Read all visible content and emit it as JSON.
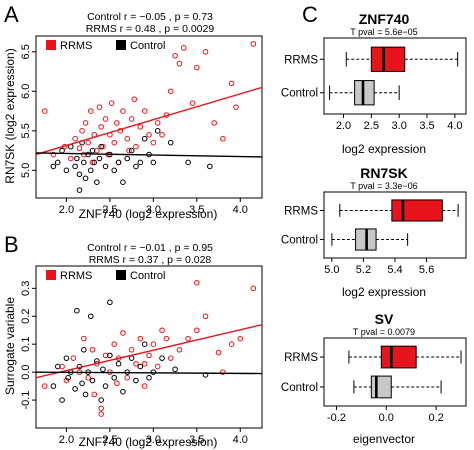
{
  "colors": {
    "rrms": "#e8141c",
    "control": "#000000",
    "box_control": "#c8c8c8",
    "axis": "#000000"
  },
  "chart_data": [
    {
      "panel": "A",
      "type": "scatter",
      "xlabel": "ZNF740 (log2 expression)",
      "ylabel": "RN7SK (log2 expression)",
      "xlim": [
        1.65,
        4.25
      ],
      "ylim": [
        4.65,
        6.7
      ],
      "xticks": [
        2.0,
        2.5,
        3.0,
        3.5,
        4.0
      ],
      "yticks": [
        5.0,
        5.5,
        6.0,
        6.5
      ],
      "stats": [
        "Control r = −0.05 , p = 0.73",
        "RRMS r = 0.48 , p = 0.0029"
      ],
      "legend": [
        "RRMS",
        "Control"
      ],
      "legend_position": "top-left",
      "grid": false,
      "series": [
        {
          "name": "RRMS",
          "color": "#e8141c",
          "points": [
            [
              1.75,
              5.75
            ],
            [
              1.85,
              5.2
            ],
            [
              1.98,
              5.3
            ],
            [
              2.05,
              5.15
            ],
            [
              2.1,
              5.4
            ],
            [
              2.15,
              5.28
            ],
            [
              2.18,
              5.5
            ],
            [
              2.2,
              5.2
            ],
            [
              2.22,
              5.6
            ],
            [
              2.25,
              5.35
            ],
            [
              2.28,
              5.75
            ],
            [
              2.3,
              5.1
            ],
            [
              2.32,
              5.45
            ],
            [
              2.35,
              5.25
            ],
            [
              2.38,
              5.8
            ],
            [
              2.4,
              5.55
            ],
            [
              2.42,
              5.3
            ],
            [
              2.45,
              5.65
            ],
            [
              2.48,
              5.2
            ],
            [
              2.5,
              5.45
            ],
            [
              2.52,
              5.85
            ],
            [
              2.55,
              5.35
            ],
            [
              2.58,
              5.6
            ],
            [
              2.6,
              5.1
            ],
            [
              2.62,
              5.5
            ],
            [
              2.65,
              5.75
            ],
            [
              2.7,
              5.4
            ],
            [
              2.72,
              5.25
            ],
            [
              2.75,
              5.65
            ],
            [
              2.78,
              5.9
            ],
            [
              2.8,
              5.3
            ],
            [
              2.85,
              5.55
            ],
            [
              2.9,
              5.75
            ],
            [
              2.95,
              5.45
            ],
            [
              3.0,
              5.35
            ],
            [
              3.05,
              5.6
            ],
            [
              3.1,
              5.45
            ],
            [
              3.15,
              5.7
            ],
            [
              3.2,
              6.0
            ],
            [
              3.25,
              6.45
            ],
            [
              3.3,
              6.35
            ],
            [
              3.35,
              6.55
            ],
            [
              3.45,
              5.85
            ],
            [
              3.5,
              6.3
            ],
            [
              3.6,
              6.5
            ],
            [
              3.7,
              5.6
            ],
            [
              3.8,
              5.4
            ],
            [
              3.9,
              6.1
            ],
            [
              3.95,
              5.8
            ],
            [
              4.15,
              6.6
            ]
          ]
        },
        {
          "name": "Control",
          "color": "#000000",
          "points": [
            [
              1.85,
              5.05
            ],
            [
              1.9,
              5.1
            ],
            [
              1.95,
              5.25
            ],
            [
              2.0,
              5.0
            ],
            [
              2.05,
              5.3
            ],
            [
              2.1,
              5.05
            ],
            [
              2.12,
              5.15
            ],
            [
              2.15,
              4.95
            ],
            [
              2.18,
              5.35
            ],
            [
              2.2,
              5.1
            ],
            [
              2.22,
              4.9
            ],
            [
              2.25,
              5.2
            ],
            [
              2.28,
              5.0
            ],
            [
              2.3,
              5.25
            ],
            [
              2.32,
              5.1
            ],
            [
              2.35,
              4.85
            ],
            [
              2.38,
              5.15
            ],
            [
              2.4,
              5.3
            ],
            [
              2.45,
              5.05
            ],
            [
              2.5,
              5.2
            ],
            [
              2.55,
              5.0
            ],
            [
              2.6,
              5.1
            ],
            [
              2.65,
              4.85
            ],
            [
              2.7,
              5.15
            ],
            [
              2.75,
              5.25
            ],
            [
              2.8,
              5.05
            ],
            [
              2.85,
              5.1
            ],
            [
              2.9,
              5.4
            ],
            [
              2.95,
              5.2
            ],
            [
              3.0,
              5.1
            ],
            [
              3.05,
              5.5
            ],
            [
              3.2,
              5.35
            ],
            [
              3.4,
              5.1
            ],
            [
              3.65,
              5.05
            ],
            [
              2.15,
              4.75
            ]
          ]
        }
      ],
      "fits": [
        {
          "name": "RRMS",
          "color": "#e8141c",
          "x": [
            1.65,
            4.25
          ],
          "y": [
            5.2,
            6.05
          ]
        },
        {
          "name": "Control",
          "color": "#000000",
          "x": [
            1.65,
            4.25
          ],
          "y": [
            5.22,
            5.17
          ]
        }
      ]
    },
    {
      "panel": "B",
      "type": "scatter",
      "xlabel": "ZNF740 (log2 expression)",
      "ylabel": "Surrogate variable",
      "xlim": [
        1.65,
        4.25
      ],
      "ylim": [
        -0.2,
        0.38
      ],
      "xticks": [
        2.0,
        2.5,
        3.0,
        3.5,
        4.0
      ],
      "yticks": [
        -0.1,
        0.0,
        0.1,
        0.2,
        0.3
      ],
      "stats": [
        "Control r = −0.01 , p = 0.95",
        "RRMS r = 0.37 , p = 0.028"
      ],
      "legend": [
        "RRMS",
        "Control"
      ],
      "legend_position": "top-left",
      "grid": false,
      "series": [
        {
          "name": "RRMS",
          "color": "#e8141c",
          "points": [
            [
              1.75,
              -0.05
            ],
            [
              1.95,
              0.02
            ],
            [
              2.0,
              -0.03
            ],
            [
              2.08,
              0.05
            ],
            [
              2.15,
              0.0
            ],
            [
              2.2,
              0.12
            ],
            [
              2.25,
              -0.02
            ],
            [
              2.3,
              0.08
            ],
            [
              2.32,
              -0.08
            ],
            [
              2.35,
              0.03
            ],
            [
              2.4,
              -0.13
            ],
            [
              2.45,
              0.06
            ],
            [
              2.5,
              0.0
            ],
            [
              2.55,
              0.1
            ],
            [
              2.58,
              -0.04
            ],
            [
              2.6,
              0.05
            ],
            [
              2.65,
              0.14
            ],
            [
              2.7,
              -0.02
            ],
            [
              2.75,
              0.08
            ],
            [
              2.8,
              0.03
            ],
            [
              2.85,
              0.12
            ],
            [
              2.9,
              -0.05
            ],
            [
              2.95,
              0.06
            ],
            [
              3.0,
              0.1
            ],
            [
              3.05,
              0.02
            ],
            [
              3.1,
              0.15
            ],
            [
              3.15,
              0.12
            ],
            [
              3.2,
              0.05
            ],
            [
              3.3,
              0.08
            ],
            [
              3.4,
              0.12
            ],
            [
              3.5,
              0.15
            ],
            [
              3.6,
              0.2
            ],
            [
              3.75,
              0.07
            ],
            [
              3.8,
              0.0
            ],
            [
              3.9,
              0.1
            ],
            [
              4.0,
              0.12
            ],
            [
              4.15,
              0.3
            ],
            [
              2.4,
              -0.15
            ],
            [
              3.5,
              0.32
            ],
            [
              2.9,
              0.03
            ]
          ]
        },
        {
          "name": "Control",
          "color": "#000000",
          "points": [
            [
              1.85,
              -0.05
            ],
            [
              1.9,
              0.02
            ],
            [
              1.95,
              -0.1
            ],
            [
              2.0,
              0.05
            ],
            [
              2.02,
              -0.02
            ],
            [
              2.05,
              0.0
            ],
            [
              2.1,
              -0.06
            ],
            [
              2.12,
              0.22
            ],
            [
              2.15,
              0.02
            ],
            [
              2.18,
              -0.04
            ],
            [
              2.2,
              0.08
            ],
            [
              2.22,
              -0.08
            ],
            [
              2.25,
              0.0
            ],
            [
              2.28,
              0.2
            ],
            [
              2.3,
              -0.03
            ],
            [
              2.35,
              0.04
            ],
            [
              2.4,
              -0.1
            ],
            [
              2.42,
              0.01
            ],
            [
              2.45,
              -0.05
            ],
            [
              2.5,
              0.06
            ],
            [
              2.55,
              -0.02
            ],
            [
              2.6,
              0.03
            ],
            [
              2.65,
              -0.07
            ],
            [
              2.7,
              0.0
            ],
            [
              2.75,
              0.05
            ],
            [
              2.8,
              -0.03
            ],
            [
              2.85,
              0.02
            ],
            [
              2.9,
              0.1
            ],
            [
              2.95,
              -0.02
            ],
            [
              3.0,
              0.0
            ],
            [
              3.1,
              0.05
            ],
            [
              3.25,
              0.01
            ],
            [
              3.6,
              -0.01
            ],
            [
              2.5,
              0.25
            ]
          ]
        }
      ],
      "fits": [
        {
          "name": "RRMS",
          "color": "#e8141c",
          "x": [
            1.65,
            4.25
          ],
          "y": [
            -0.02,
            0.17
          ]
        },
        {
          "name": "Control",
          "color": "#000000",
          "x": [
            1.65,
            4.25
          ],
          "y": [
            0.0,
            -0.005
          ]
        }
      ]
    },
    {
      "panel": "C",
      "type": "box",
      "title": "ZNF740",
      "subtitle": "T pval = 5.6e−05",
      "xlabel": "log2 expression",
      "xlim": [
        1.65,
        4.2
      ],
      "xticks": [
        2.0,
        2.5,
        3.0,
        3.5,
        4.0
      ],
      "groups": [
        {
          "name": "RRMS",
          "color": "#e8141c",
          "whisker_low": 2.05,
          "q1": 2.5,
          "median": 2.72,
          "q3": 3.1,
          "whisker_high": 4.05
        },
        {
          "name": "Control",
          "color": "#c8c8c8",
          "whisker_low": 1.75,
          "q1": 2.2,
          "median": 2.35,
          "q3": 2.55,
          "whisker_high": 3.0
        }
      ]
    },
    {
      "panel": "C",
      "type": "box",
      "title": "RN7SK",
      "subtitle": "T pval = 3.3e−06",
      "xlabel": "log2 expression",
      "xlim": [
        4.95,
        5.85
      ],
      "xticks": [
        5.0,
        5.2,
        5.4,
        5.6
      ],
      "groups": [
        {
          "name": "RRMS",
          "color": "#e8141c",
          "whisker_low": 5.05,
          "q1": 5.38,
          "median": 5.45,
          "q3": 5.7,
          "whisker_high": 5.8
        },
        {
          "name": "Control",
          "color": "#c8c8c8",
          "whisker_low": 5.0,
          "q1": 5.15,
          "median": 5.22,
          "q3": 5.28,
          "whisker_high": 5.48
        }
      ]
    },
    {
      "panel": "C",
      "type": "box",
      "title": "SV",
      "subtitle": "T pval = 0.0079",
      "xlabel": "eigenvector",
      "xlim": [
        -0.25,
        0.32
      ],
      "xticks": [
        -0.2,
        0.0,
        0.2
      ],
      "groups": [
        {
          "name": "RRMS",
          "color": "#e8141c",
          "whisker_low": -0.15,
          "q1": -0.02,
          "median": 0.02,
          "q3": 0.12,
          "whisker_high": 0.3
        },
        {
          "name": "Control",
          "color": "#c8c8c8",
          "whisker_low": -0.13,
          "q1": -0.06,
          "median": -0.04,
          "q3": 0.02,
          "whisker_high": 0.22
        }
      ]
    }
  ],
  "panel_labels": [
    "A",
    "B",
    "C"
  ]
}
